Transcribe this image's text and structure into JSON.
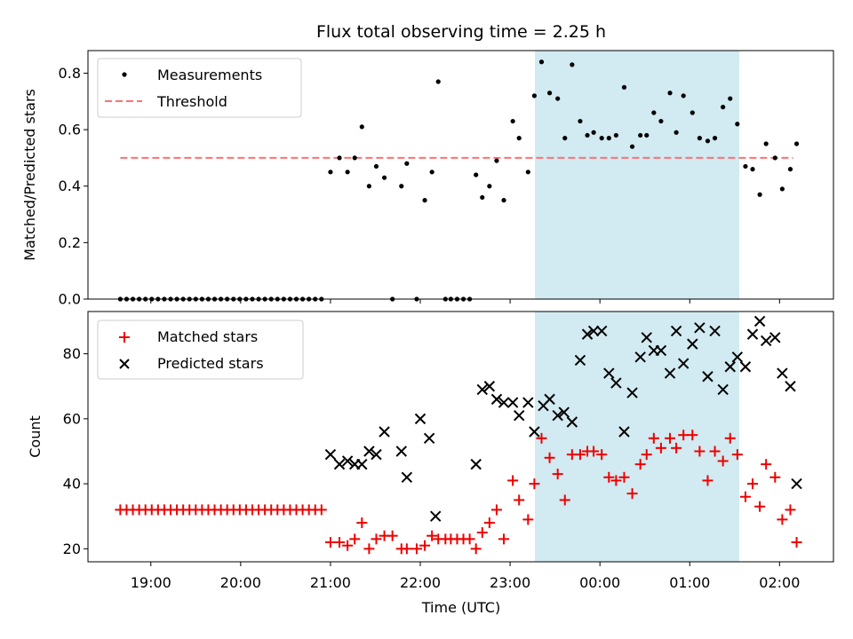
{
  "figure": {
    "title": "Flux total observing time = 2.25 h",
    "xlabel": "Time (UTC)",
    "x_tick_labels": [
      "19:00",
      "20:00",
      "21:00",
      "22:00",
      "23:00",
      "00:00",
      "01:00",
      "02:00"
    ]
  },
  "colors": {
    "measurement": "#000000",
    "threshold": "#ff7070",
    "matched": "#ee0000",
    "predicted": "#000000",
    "shade": "#add8e6"
  },
  "chart_data": [
    {
      "type": "scatter",
      "ylabel": "Matched/Predicted stars",
      "xlim": [
        18.3,
        26.6
      ],
      "ylim": [
        0,
        0.88
      ],
      "y_ticks": [
        0.0,
        0.2,
        0.4,
        0.6,
        0.8
      ],
      "y_tick_labels": [
        "0.0",
        "0.2",
        "0.4",
        "0.6",
        "0.8"
      ],
      "x_ticks": [
        19,
        20,
        21,
        22,
        23,
        24,
        25,
        26
      ],
      "x_tick_labels": [
        "19:00",
        "20:00",
        "21:00",
        "22:00",
        "23:00",
        "00:00",
        "01:00",
        "02:00"
      ],
      "x_unit": "hours UTC",
      "grid": false,
      "legend_position": "top-left",
      "shaded_span": [
        23.27,
        25.53
      ],
      "threshold": {
        "name": "Threshold",
        "y": 0.5,
        "x": [
          18.66,
          26.15
        ],
        "style": "dashed"
      },
      "series": [
        {
          "name": "Measurements",
          "marker": "dot",
          "x": [
            18.66,
            18.73,
            18.8,
            18.87,
            18.94,
            19.01,
            19.08,
            19.15,
            19.22,
            19.29,
            19.36,
            19.43,
            19.5,
            19.57,
            19.64,
            19.71,
            19.78,
            19.85,
            19.92,
            19.99,
            20.06,
            20.13,
            20.2,
            20.27,
            20.34,
            20.41,
            20.48,
            20.55,
            20.62,
            20.69,
            20.76,
            20.83,
            20.9,
            21.0,
            21.1,
            21.19,
            21.27,
            21.35,
            21.43,
            21.51,
            21.6,
            21.69,
            21.79,
            21.85,
            21.96,
            22.05,
            22.13,
            22.2,
            22.28,
            22.34,
            22.41,
            22.48,
            22.55,
            22.62,
            22.69,
            22.77,
            22.85,
            22.93,
            23.03,
            23.1,
            23.2,
            23.27,
            23.35,
            23.44,
            23.53,
            23.61,
            23.69,
            23.78,
            23.86,
            23.93,
            24.02,
            24.1,
            24.18,
            24.27,
            24.36,
            24.45,
            24.52,
            24.6,
            24.68,
            24.78,
            24.85,
            24.93,
            25.03,
            25.11,
            25.2,
            25.28,
            25.37,
            25.45,
            25.53,
            25.62,
            25.7,
            25.78,
            25.85,
            25.95,
            26.03,
            26.12,
            26.19
          ],
          "y": [
            0,
            0,
            0,
            0,
            0,
            0,
            0,
            0,
            0,
            0,
            0,
            0,
            0,
            0,
            0,
            0,
            0,
            0,
            0,
            0,
            0,
            0,
            0,
            0,
            0,
            0,
            0,
            0,
            0,
            0,
            0,
            0,
            0,
            0.45,
            0.5,
            0.45,
            0.5,
            0.61,
            0.4,
            0.47,
            0.43,
            0,
            0.4,
            0.48,
            0,
            0.35,
            0.45,
            0.77,
            0,
            0,
            0,
            0,
            0,
            0.44,
            0.36,
            0.4,
            0.49,
            0.35,
            0.63,
            0.57,
            0.45,
            0.72,
            0.84,
            0.73,
            0.71,
            0.57,
            0.83,
            0.63,
            0.58,
            0.59,
            0.57,
            0.57,
            0.58,
            0.75,
            0.54,
            0.58,
            0.58,
            0.66,
            0.63,
            0.73,
            0.59,
            0.72,
            0.66,
            0.57,
            0.56,
            0.57,
            0.68,
            0.71,
            0.62,
            0.47,
            0.46,
            0.37,
            0.55,
            0.5,
            0.39,
            0.46,
            0.55
          ]
        }
      ]
    },
    {
      "type": "scatter",
      "ylabel": "Count",
      "xlabel": "Time (UTC)",
      "xlim": [
        18.3,
        26.6
      ],
      "ylim": [
        16,
        93
      ],
      "y_ticks": [
        20,
        40,
        60,
        80
      ],
      "y_tick_labels": [
        "20",
        "40",
        "60",
        "80"
      ],
      "x_ticks": [
        19,
        20,
        21,
        22,
        23,
        24,
        25,
        26
      ],
      "x_tick_labels": [
        "19:00",
        "20:00",
        "21:00",
        "22:00",
        "23:00",
        "00:00",
        "01:00",
        "02:00"
      ],
      "x_unit": "hours UTC",
      "grid": false,
      "legend_position": "top-left",
      "shaded_span": [
        23.27,
        25.53
      ],
      "series": [
        {
          "name": "Matched stars",
          "marker": "plus",
          "x": [
            18.66,
            18.73,
            18.8,
            18.87,
            18.94,
            19.01,
            19.08,
            19.15,
            19.22,
            19.29,
            19.36,
            19.43,
            19.5,
            19.57,
            19.64,
            19.71,
            19.78,
            19.85,
            19.92,
            19.99,
            20.06,
            20.13,
            20.2,
            20.27,
            20.34,
            20.41,
            20.48,
            20.55,
            20.62,
            20.69,
            20.76,
            20.83,
            20.9,
            21.0,
            21.1,
            21.19,
            21.27,
            21.35,
            21.43,
            21.51,
            21.6,
            21.69,
            21.79,
            21.85,
            21.96,
            22.05,
            22.13,
            22.2,
            22.28,
            22.34,
            22.41,
            22.48,
            22.55,
            22.62,
            22.69,
            22.77,
            22.85,
            22.93,
            23.03,
            23.1,
            23.2,
            23.27,
            23.35,
            23.44,
            23.53,
            23.61,
            23.69,
            23.78,
            23.86,
            23.93,
            24.02,
            24.1,
            24.18,
            24.27,
            24.36,
            24.45,
            24.52,
            24.6,
            24.68,
            24.78,
            24.85,
            24.93,
            25.03,
            25.11,
            25.2,
            25.28,
            25.37,
            25.45,
            25.53,
            25.62,
            25.7,
            25.78,
            25.85,
            25.95,
            26.03,
            26.12,
            26.19
          ],
          "y": [
            32,
            32,
            32,
            32,
            32,
            32,
            32,
            32,
            32,
            32,
            32,
            32,
            32,
            32,
            32,
            32,
            32,
            32,
            32,
            32,
            32,
            32,
            32,
            32,
            32,
            32,
            32,
            32,
            32,
            32,
            32,
            32,
            32,
            22,
            22,
            21,
            23,
            28,
            20,
            23,
            24,
            24,
            20,
            20,
            20,
            21,
            24,
            23,
            23,
            23,
            23,
            23,
            23,
            20,
            25,
            28,
            32,
            23,
            41,
            35,
            29,
            40,
            54,
            48,
            43,
            35,
            49,
            49,
            50,
            50,
            49,
            42,
            41,
            42,
            37,
            46,
            49,
            54,
            51,
            54,
            51,
            55,
            55,
            50,
            41,
            50,
            47,
            54,
            49,
            36,
            40,
            33,
            46,
            42,
            29,
            32,
            22
          ]
        },
        {
          "name": "Predicted stars",
          "marker": "x",
          "x": [
            21.0,
            21.1,
            21.19,
            21.27,
            21.35,
            21.43,
            21.51,
            21.6,
            21.79,
            21.85,
            22.0,
            22.1,
            22.17,
            22.62,
            22.69,
            22.77,
            22.85,
            22.93,
            23.03,
            23.1,
            23.2,
            23.27,
            23.37,
            23.44,
            23.53,
            23.6,
            23.69,
            23.78,
            23.86,
            23.93,
            24.02,
            24.1,
            24.18,
            24.27,
            24.36,
            24.45,
            24.52,
            24.6,
            24.68,
            24.78,
            24.85,
            24.93,
            25.03,
            25.11,
            25.2,
            25.28,
            25.37,
            25.45,
            25.53,
            25.62,
            25.7,
            25.78,
            25.85,
            25.95,
            26.03,
            26.12,
            26.19
          ],
          "y": [
            49,
            46,
            47,
            46,
            46,
            50,
            49,
            56,
            50,
            42,
            60,
            54,
            30,
            46,
            69,
            70,
            66,
            65,
            65,
            61,
            65,
            56,
            64,
            66,
            61,
            62,
            59,
            78,
            86,
            87,
            87,
            74,
            71,
            56,
            68,
            79,
            85,
            81,
            81,
            74,
            87,
            77,
            83,
            88,
            73,
            87,
            69,
            76,
            79,
            76,
            86,
            90,
            84,
            85,
            74,
            70,
            40
          ]
        }
      ]
    }
  ]
}
